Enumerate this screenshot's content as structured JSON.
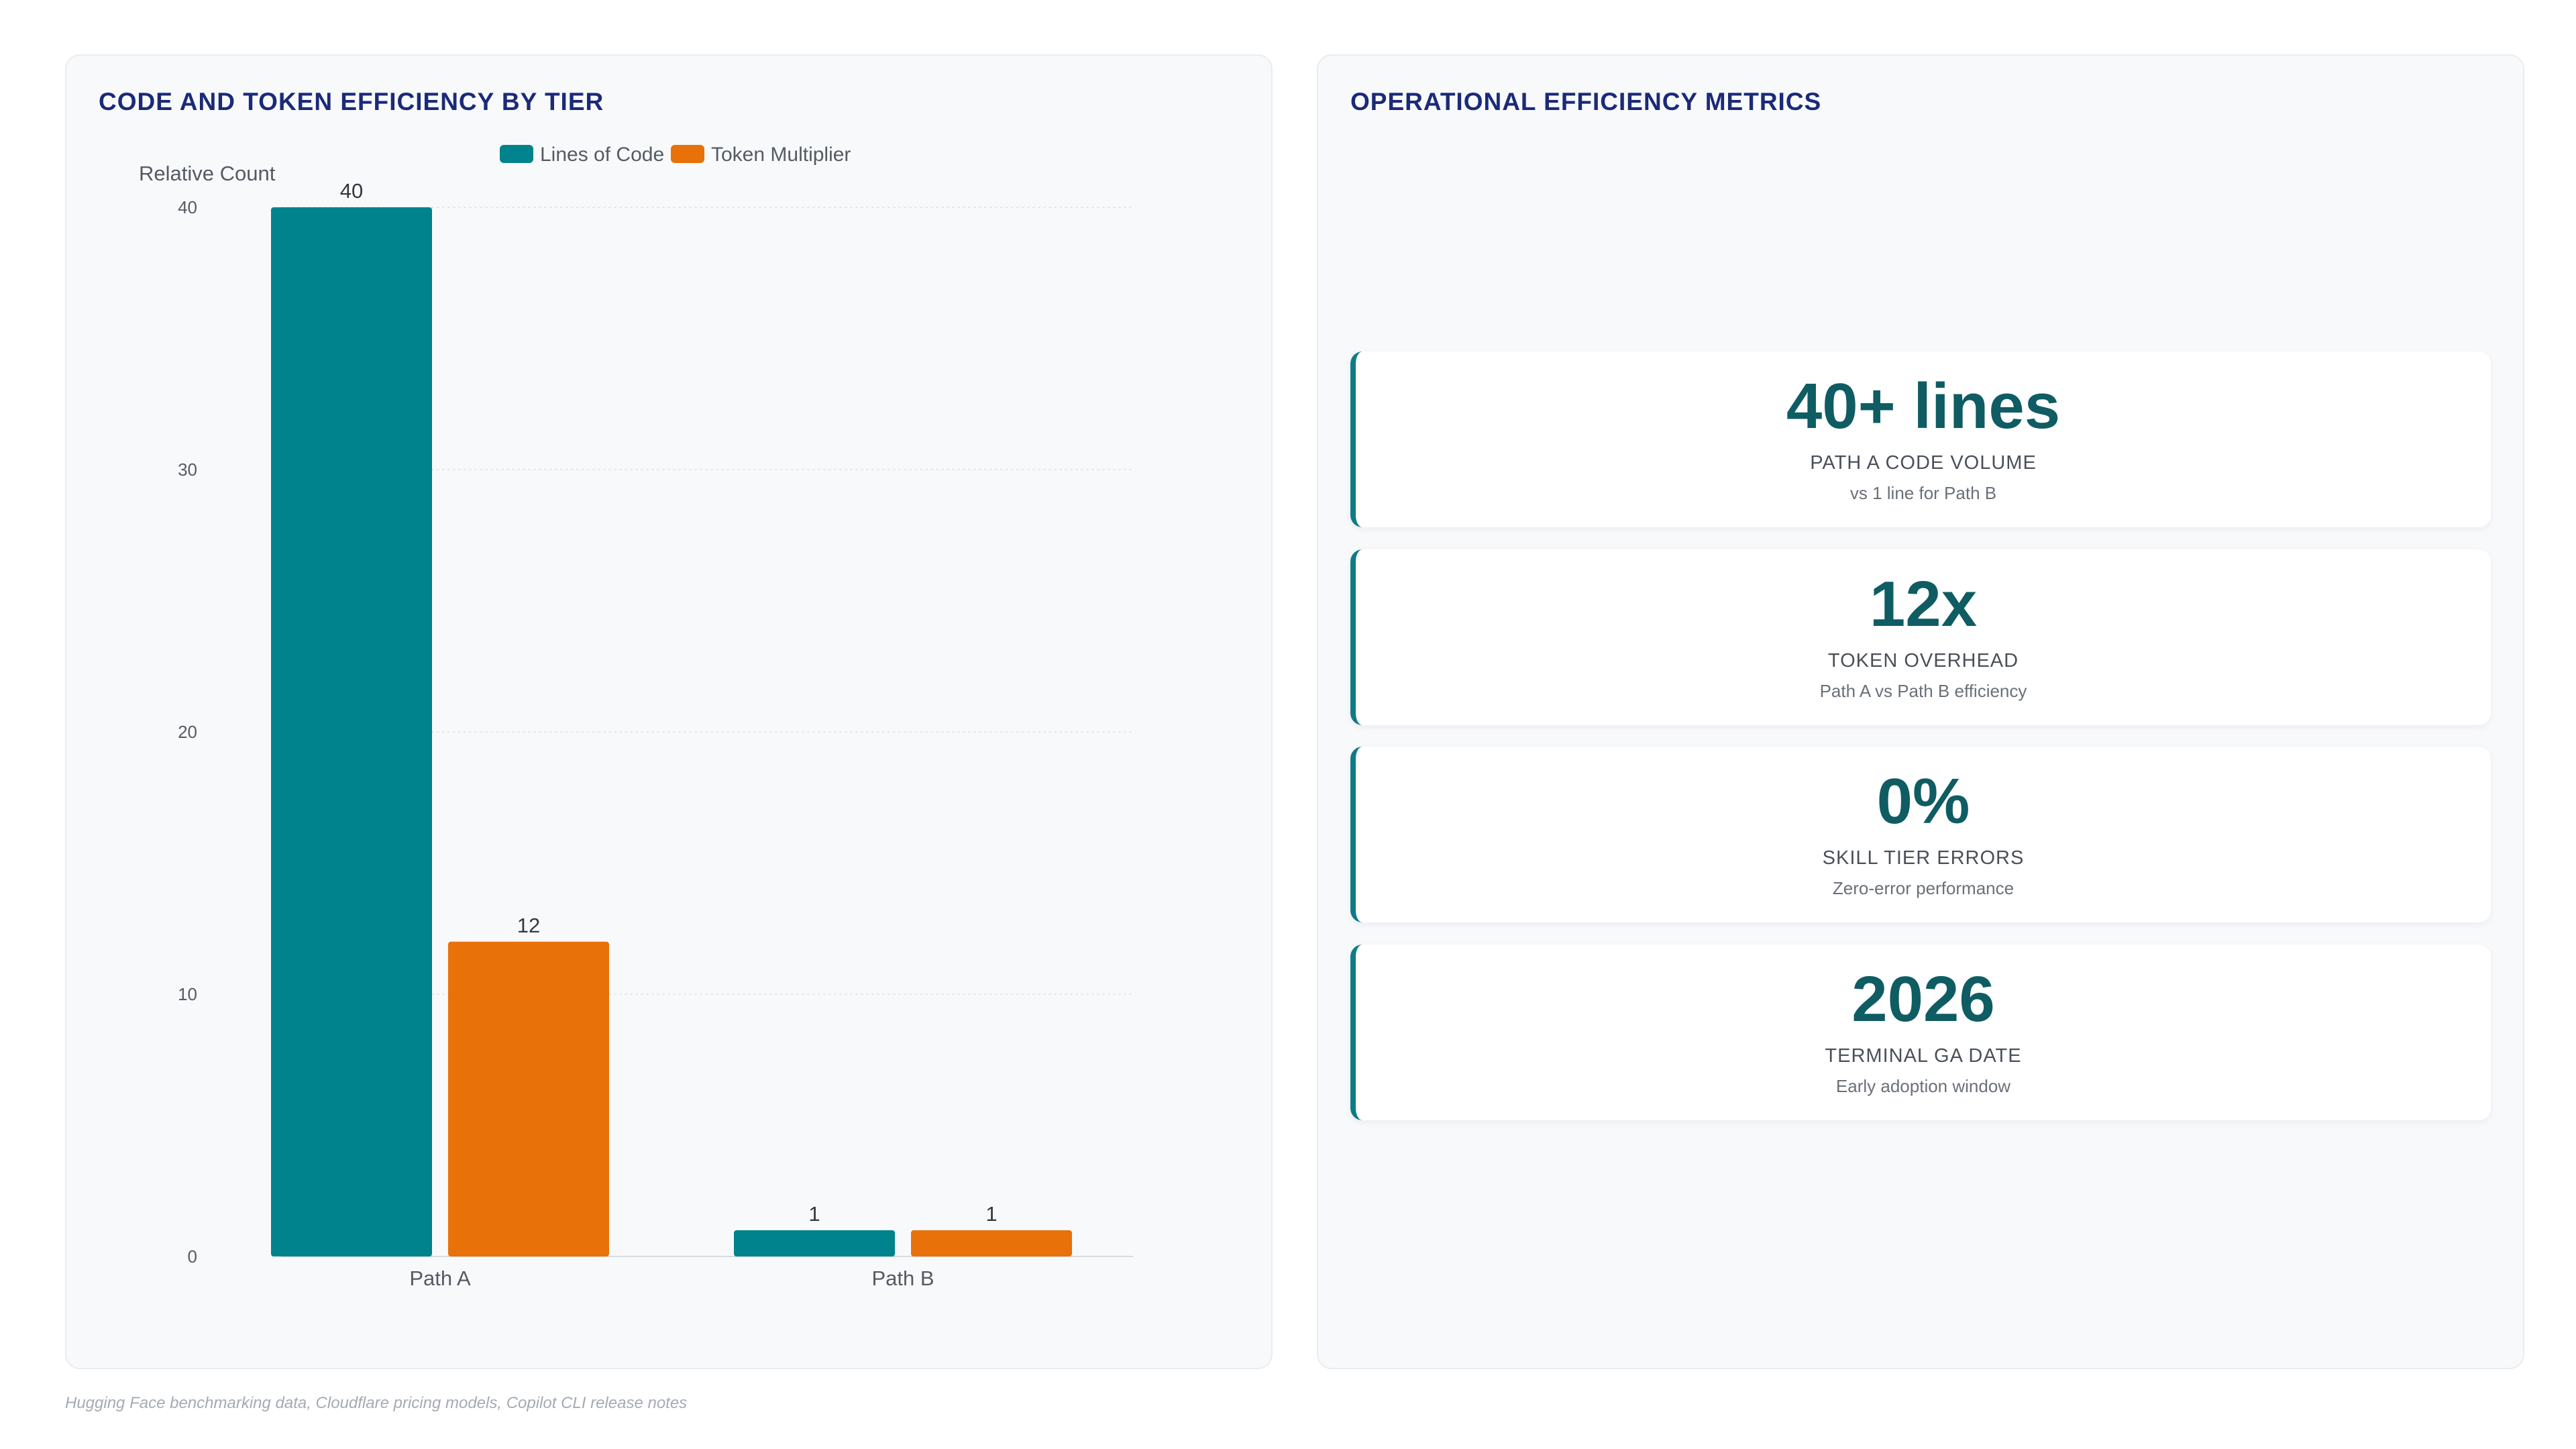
{
  "chart_panel": {
    "title": "CODE AND TOKEN EFFICIENCY BY TIER"
  },
  "metrics_panel": {
    "title": "OPERATIONAL EFFICIENCY METRICS",
    "cards": [
      {
        "value": "40+ lines",
        "label": "PATH A CODE VOLUME",
        "sub": "vs 1 line for Path B"
      },
      {
        "value": "12x",
        "label": "TOKEN OVERHEAD",
        "sub": "Path A vs Path B efficiency"
      },
      {
        "value": "0%",
        "label": "SKILL TIER ERRORS",
        "sub": "Zero-error performance"
      },
      {
        "value": "2026",
        "label": "TERMINAL GA DATE",
        "sub": "Early adoption window"
      }
    ],
    "accent_color": "#0e7c86"
  },
  "source": "Hugging Face benchmarking data, Cloudflare pricing models, Copilot CLI release notes",
  "chart_data": {
    "type": "bar",
    "title": "CODE AND TOKEN EFFICIENCY BY TIER",
    "ylabel": "Relative Count",
    "xlabel": "",
    "categories": [
      "Path A",
      "Path B"
    ],
    "series": [
      {
        "name": "Lines of Code",
        "values": [
          40,
          1
        ],
        "color": "#00838c"
      },
      {
        "name": "Token Multiplier",
        "values": [
          12,
          1
        ],
        "color": "#e8710a"
      }
    ],
    "ylim": [
      0,
      40
    ],
    "yticks": [
      0,
      10,
      20,
      30,
      40
    ],
    "grid": true,
    "legend": "top-center",
    "data_labels": true
  }
}
